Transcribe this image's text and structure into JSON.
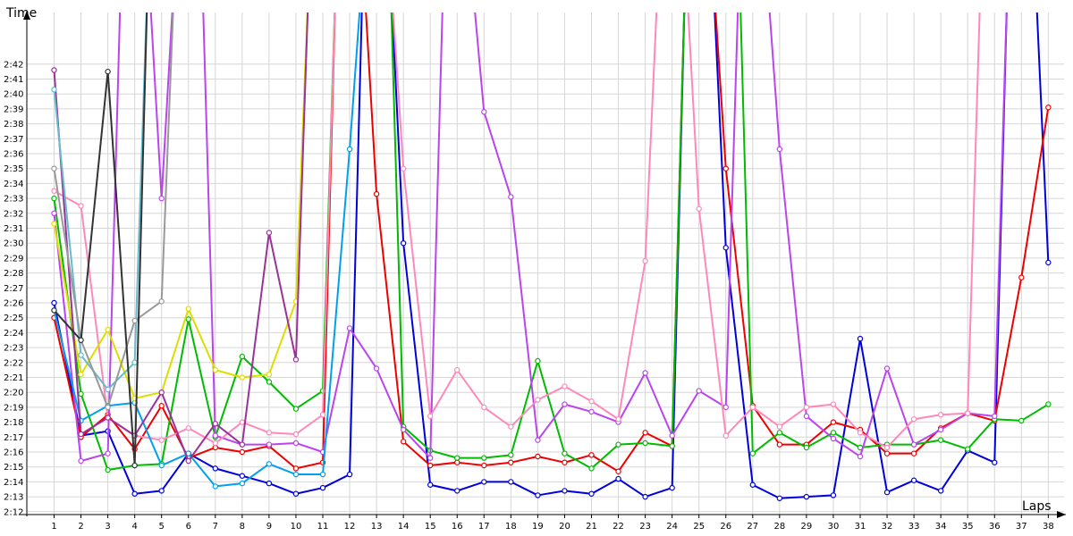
{
  "chart_data": {
    "type": "line",
    "xlabel": "Laps",
    "ylabel": "Time",
    "x": [
      1,
      2,
      3,
      4,
      5,
      6,
      7,
      8,
      9,
      10,
      11,
      12,
      13,
      14,
      15,
      16,
      17,
      18,
      19,
      20,
      21,
      22,
      23,
      24,
      25,
      26,
      27,
      28,
      29,
      30,
      31,
      32,
      33,
      34,
      35,
      36,
      37,
      38
    ],
    "ylim": [
      "2:11",
      "2:44"
    ],
    "y_ticks": [
      "2:12",
      "2:13",
      "2:14",
      "2:15",
      "2:16",
      "2:17",
      "2:18",
      "2:19",
      "2:20",
      "2:21",
      "2:22",
      "2:23",
      "2:24",
      "2:25",
      "2:26",
      "2:27",
      "2:28",
      "2:29",
      "2:30",
      "2:31",
      "2:32",
      "2:33",
      "2:34",
      "2:35",
      "2:36",
      "2:37",
      "2:38",
      "2:39",
      "2:40",
      "2:41",
      "2:42"
    ],
    "grid": true,
    "series": [
      {
        "color": "#0000dd",
        "values": [
          "2:26.0",
          "2:17.1",
          "2:17.4",
          "2:13.2",
          "2:13.4",
          "2:15.9",
          "2:14.9",
          "2:14.4",
          "2:13.9",
          "2:13.2",
          "2:13.6",
          "2:14.5",
          null,
          "2:30.0",
          "2:13.8",
          "2:13.4",
          "2:14.0",
          "2:14.0",
          "2:13.1",
          "2:13.4",
          "2:13.2",
          "2:14.2",
          "2:13.0",
          "2:13.6",
          null,
          "2:29.7",
          "2:13.8",
          "2:12.9",
          "2:13.0",
          "2:13.1",
          "2:23.6",
          "2:13.3",
          "2:14.1",
          "2:13.4",
          "2:16.1",
          "2:15.3",
          null,
          "2:28.7"
        ]
      },
      {
        "color": "#ee0000",
        "values": [
          "2:25.0",
          "2:17.0",
          "2:18.5",
          "2:16.2",
          "2:19.1",
          "2:15.6",
          "2:16.3",
          "2:16.0",
          "2:16.4",
          "2:14.9",
          "2:15.3",
          null,
          "2:33.3",
          "2:16.7",
          "2:15.1",
          "2:15.3",
          "2:15.1",
          "2:15.3",
          "2:15.7",
          "2:15.3",
          "2:15.8",
          "2:14.7",
          "2:17.3",
          "2:16.4",
          null,
          "2:35.0",
          "2:19.1",
          "2:16.5",
          "2:16.5",
          "2:18.0",
          "2:17.5",
          "2:15.9",
          "2:15.9",
          "2:17.6",
          "2:18.6",
          "2:18.1",
          "2:27.7",
          "2:39.1"
        ]
      },
      {
        "color": "#00bb00",
        "values": [
          "2:33.0",
          "2:19.9",
          "2:14.8",
          "2:15.1",
          "2:15.2",
          "2:24.9",
          "2:17.0",
          "2:22.4",
          "2:20.7",
          "2:18.9",
          "2:20.1",
          null,
          null,
          "2:17.7",
          "2:16.1",
          "2:15.6",
          "2:15.6",
          "2:15.8",
          "2:22.1",
          "2:15.9",
          "2:14.9",
          "2:16.5",
          "2:16.6",
          "2:16.4",
          null,
          null,
          "2:15.9",
          "2:17.3",
          "2:16.3",
          "2:17.3",
          "2:16.3",
          "2:16.5",
          "2:16.5",
          "2:16.8",
          "2:16.2",
          "2:18.2",
          "2:18.1",
          "2:19.2"
        ]
      },
      {
        "color": "#bb44ee",
        "values": [
          "2:32.0",
          "2:15.4",
          "2:15.9",
          null,
          "2:33.0",
          null,
          "2:17.1",
          "2:16.5",
          "2:16.5",
          "2:16.6",
          "2:16.0",
          "2:24.3",
          "2:21.6",
          "2:17.5",
          "2:15.6",
          null,
          "2:38.8",
          "2:33.1",
          "2:16.8",
          "2:19.2",
          "2:18.7",
          "2:18.0",
          "2:21.3",
          "2:17.1",
          "2:20.1",
          "2:19.0",
          null,
          "2:36.3",
          "2:18.4",
          "2:16.9",
          "2:15.7",
          "2:21.6",
          "2:16.5",
          "2:17.5",
          "2:18.6",
          "2:18.4",
          null,
          null
        ]
      },
      {
        "color": "#ff88bb",
        "values": [
          "2:33.5",
          "2:32.5",
          "2:18.3",
          "2:17.1",
          "2:16.8",
          "2:17.6",
          "2:16.6",
          "2:18.0",
          "2:17.3",
          "2:17.2",
          "2:18.5",
          null,
          null,
          "2:35.0",
          "2:18.4",
          "2:21.5",
          "2:19.0",
          "2:17.7",
          "2:19.5",
          "2:20.4",
          "2:19.4",
          "2:18.2",
          "2:28.8",
          null,
          "2:32.3",
          "2:17.1",
          "2:19.0",
          "2:17.7",
          "2:19.0",
          "2:19.2",
          "2:17.3",
          "2:16.3",
          "2:18.2",
          "2:18.5",
          "2:18.6",
          null,
          null,
          null
        ]
      },
      {
        "color": "#00a0ee",
        "values": [
          "2:25.5",
          "2:18.1",
          "2:19.1",
          "2:19.3",
          "2:15.1",
          "2:15.9",
          "2:13.7",
          "2:13.9",
          "2:15.2",
          "2:14.5",
          "2:14.5",
          "2:36.3",
          null,
          null,
          null,
          null,
          null,
          null,
          null,
          null,
          null,
          null,
          null,
          null,
          null,
          null,
          null,
          null,
          null,
          null,
          null,
          null,
          null,
          null,
          null,
          null,
          null,
          null
        ]
      },
      {
        "color": "#dddd00",
        "values": [
          "2:31.3",
          "2:21.2",
          "2:24.2",
          "2:19.6",
          "2:20.0",
          "2:25.6",
          "2:21.5",
          "2:21.0",
          "2:21.2",
          "2:26.1",
          null,
          null,
          null,
          null,
          null,
          null,
          null,
          null,
          null,
          null,
          null,
          null,
          null,
          null,
          null,
          null,
          null,
          null,
          null,
          null,
          null,
          null,
          null,
          null,
          null,
          null,
          null,
          null
        ]
      },
      {
        "color": "#993399",
        "values": [
          "2:41.6",
          "2:17.2",
          "2:18.3",
          "2:17.1",
          "2:20.0",
          "2:15.4",
          "2:17.9",
          "2:16.5",
          "2:30.7",
          "2:22.2",
          null,
          null,
          null,
          null,
          null,
          null,
          null,
          null,
          null,
          null,
          null,
          null,
          null,
          null,
          null,
          null,
          null,
          null,
          null,
          null,
          null,
          null,
          null,
          null,
          null,
          null,
          null,
          null
        ]
      },
      {
        "color": "#66bbcc",
        "values": [
          "2:40.3",
          "2:22.5",
          "2:20.2",
          "2:22.0",
          null,
          null,
          null,
          null,
          null,
          null,
          null,
          null,
          null,
          null,
          null,
          null,
          null,
          null,
          null,
          null,
          null,
          null,
          null,
          null,
          null,
          null,
          null,
          null,
          null,
          null,
          null,
          null,
          null,
          null,
          null,
          null,
          null,
          null
        ]
      },
      {
        "color": "#999999",
        "values": [
          "2:35.0",
          "2:23.5",
          "2:19.0",
          "2:24.8",
          "2:26.1",
          null,
          null,
          null,
          null,
          null,
          null,
          null,
          null,
          null,
          null,
          null,
          null,
          null,
          null,
          null,
          null,
          null,
          null,
          null,
          null,
          null,
          null,
          null,
          null,
          null,
          null,
          null,
          null,
          null,
          null,
          null,
          null,
          null
        ]
      },
      {
        "color": "#333333",
        "values": [
          "2:25.5",
          "2:23.5",
          "2:41.5",
          "2:15.1",
          null,
          null,
          null,
          null,
          null,
          null,
          null,
          null,
          null,
          null,
          null,
          null,
          null,
          null,
          null,
          null,
          null,
          null,
          null,
          null,
          null,
          null,
          null,
          null,
          null,
          null,
          null,
          null,
          null,
          null,
          null,
          null,
          null,
          null
        ]
      }
    ]
  }
}
